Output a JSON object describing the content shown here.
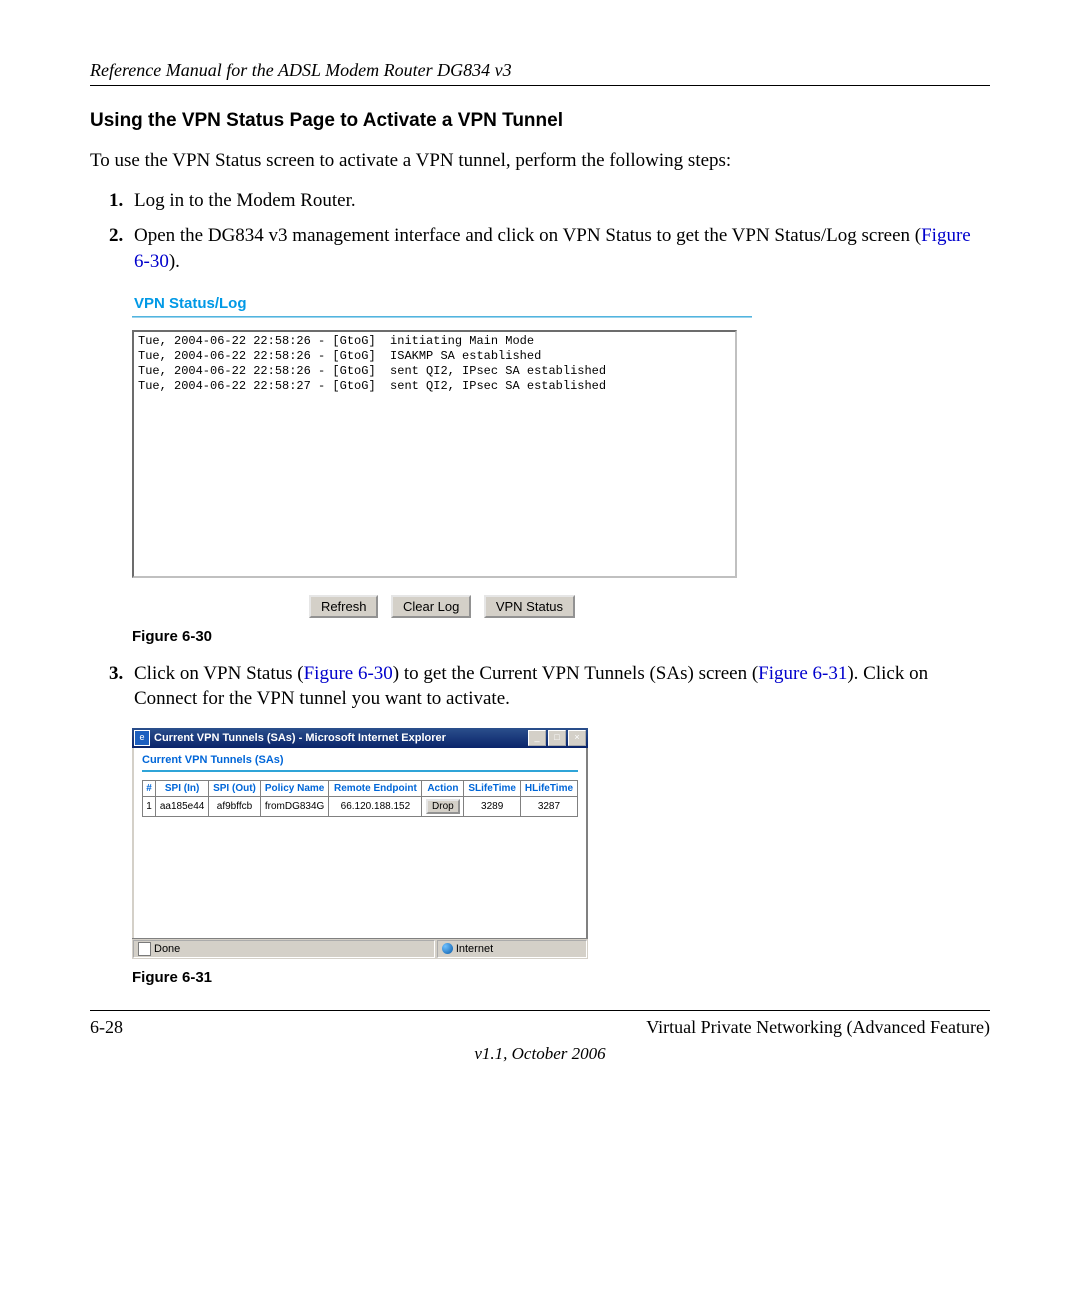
{
  "page": {
    "header_title": "Reference Manual for the ADSL Modem Router DG834 v3",
    "section_title": "Using the VPN Status Page to Activate a VPN Tunnel",
    "intro": "To use the VPN Status screen to activate a VPN tunnel, perform the following steps:",
    "step1": "Log in to the Modem Router.",
    "step2_a": "Open the DG834 v3 management interface and click on VPN Status to get the VPN Status/Log screen (",
    "step2_ref": "Figure 6-30",
    "step2_b": ").",
    "figure30_label": "Figure 6-30",
    "step3_a": "Click on VPN Status (",
    "step3_ref1": "Figure 6-30",
    "step3_b": ") to get the Current VPN Tunnels (SAs) screen (",
    "step3_ref2": "Figure 6-31",
    "step3_c": "). Click on Connect for the VPN tunnel you want to activate.",
    "figure31_label": "Figure 6-31",
    "footer_left": "6-28",
    "footer_right": "Virtual Private Networking (Advanced Feature)",
    "footer_center": "v1.1, October 2006"
  },
  "vpn_log": {
    "title": "VPN Status/Log",
    "log_text": "Tue, 2004-06-22 22:58:26 - [GtoG]  initiating Main Mode\nTue, 2004-06-22 22:58:26 - [GtoG]  ISAKMP SA established\nTue, 2004-06-22 22:58:26 - [GtoG]  sent QI2, IPsec SA established\nTue, 2004-06-22 22:58:27 - [GtoG]  sent QI2, IPsec SA established",
    "buttons": {
      "refresh": "Refresh",
      "clear": "Clear Log",
      "status": "VPN Status"
    }
  },
  "ie_window": {
    "title": "Current VPN Tunnels (SAs) - Microsoft Internet Explorer",
    "subtitle": "Current VPN Tunnels (SAs)",
    "columns": [
      "#",
      "SPI (In)",
      "SPI (Out)",
      "Policy Name",
      "Remote Endpoint",
      "Action",
      "SLifeTime",
      "HLifeTime"
    ],
    "row": {
      "num": "1",
      "spi_in": "aa185e44",
      "spi_out": "af9bffcb",
      "policy": "fromDG834G",
      "endpoint": "66.120.188.152",
      "action": "Drop",
      "slife": "3289",
      "hlife": "3287"
    },
    "status_done": "Done",
    "status_zone": "Internet",
    "winbtn_min": "_",
    "winbtn_max": "□",
    "winbtn_close": "×"
  }
}
